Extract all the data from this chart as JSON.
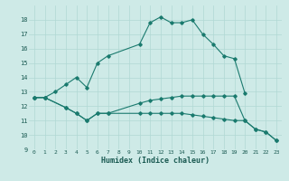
{
  "xlabel": "Humidex (Indice chaleur)",
  "background_color": "#ceeae7",
  "grid_color": "#b0d8d4",
  "line_color": "#1a7a6e",
  "xlim": [
    -0.5,
    23.5
  ],
  "ylim": [
    9,
    19
  ],
  "yticks": [
    9,
    10,
    11,
    12,
    13,
    14,
    15,
    16,
    17,
    18
  ],
  "xticks": [
    0,
    1,
    2,
    3,
    4,
    5,
    6,
    7,
    8,
    9,
    10,
    11,
    12,
    13,
    14,
    15,
    16,
    17,
    18,
    19,
    20,
    21,
    22,
    23
  ],
  "series": [
    {
      "x": [
        0,
        1,
        2,
        3,
        4,
        5,
        6,
        7,
        10,
        11,
        12,
        13,
        14,
        15,
        16,
        17,
        18,
        19,
        20
      ],
      "y": [
        12.6,
        12.6,
        13.0,
        13.5,
        14.0,
        13.3,
        15.0,
        15.5,
        16.3,
        17.8,
        18.2,
        17.8,
        17.8,
        18.0,
        17.0,
        16.3,
        15.5,
        15.3,
        12.9
      ]
    },
    {
      "x": [
        0,
        1,
        3,
        4,
        5,
        6,
        7,
        10,
        11,
        12,
        13,
        14,
        15,
        16,
        17,
        18,
        19,
        20,
        21,
        22,
        23
      ],
      "y": [
        12.6,
        12.6,
        11.9,
        11.5,
        11.0,
        11.5,
        11.5,
        12.2,
        12.4,
        12.5,
        12.6,
        12.7,
        12.7,
        12.7,
        12.7,
        12.7,
        12.7,
        11.0,
        10.4,
        10.2,
        9.6
      ]
    },
    {
      "x": [
        0,
        1,
        3,
        4,
        5,
        6,
        7,
        10,
        11,
        12,
        13,
        14,
        15,
        16,
        17,
        18,
        19,
        20,
        21,
        22,
        23
      ],
      "y": [
        12.6,
        12.6,
        11.9,
        11.5,
        11.0,
        11.5,
        11.5,
        11.5,
        11.5,
        11.5,
        11.5,
        11.5,
        11.4,
        11.3,
        11.2,
        11.1,
        11.0,
        11.0,
        10.4,
        10.2,
        9.6
      ]
    }
  ]
}
